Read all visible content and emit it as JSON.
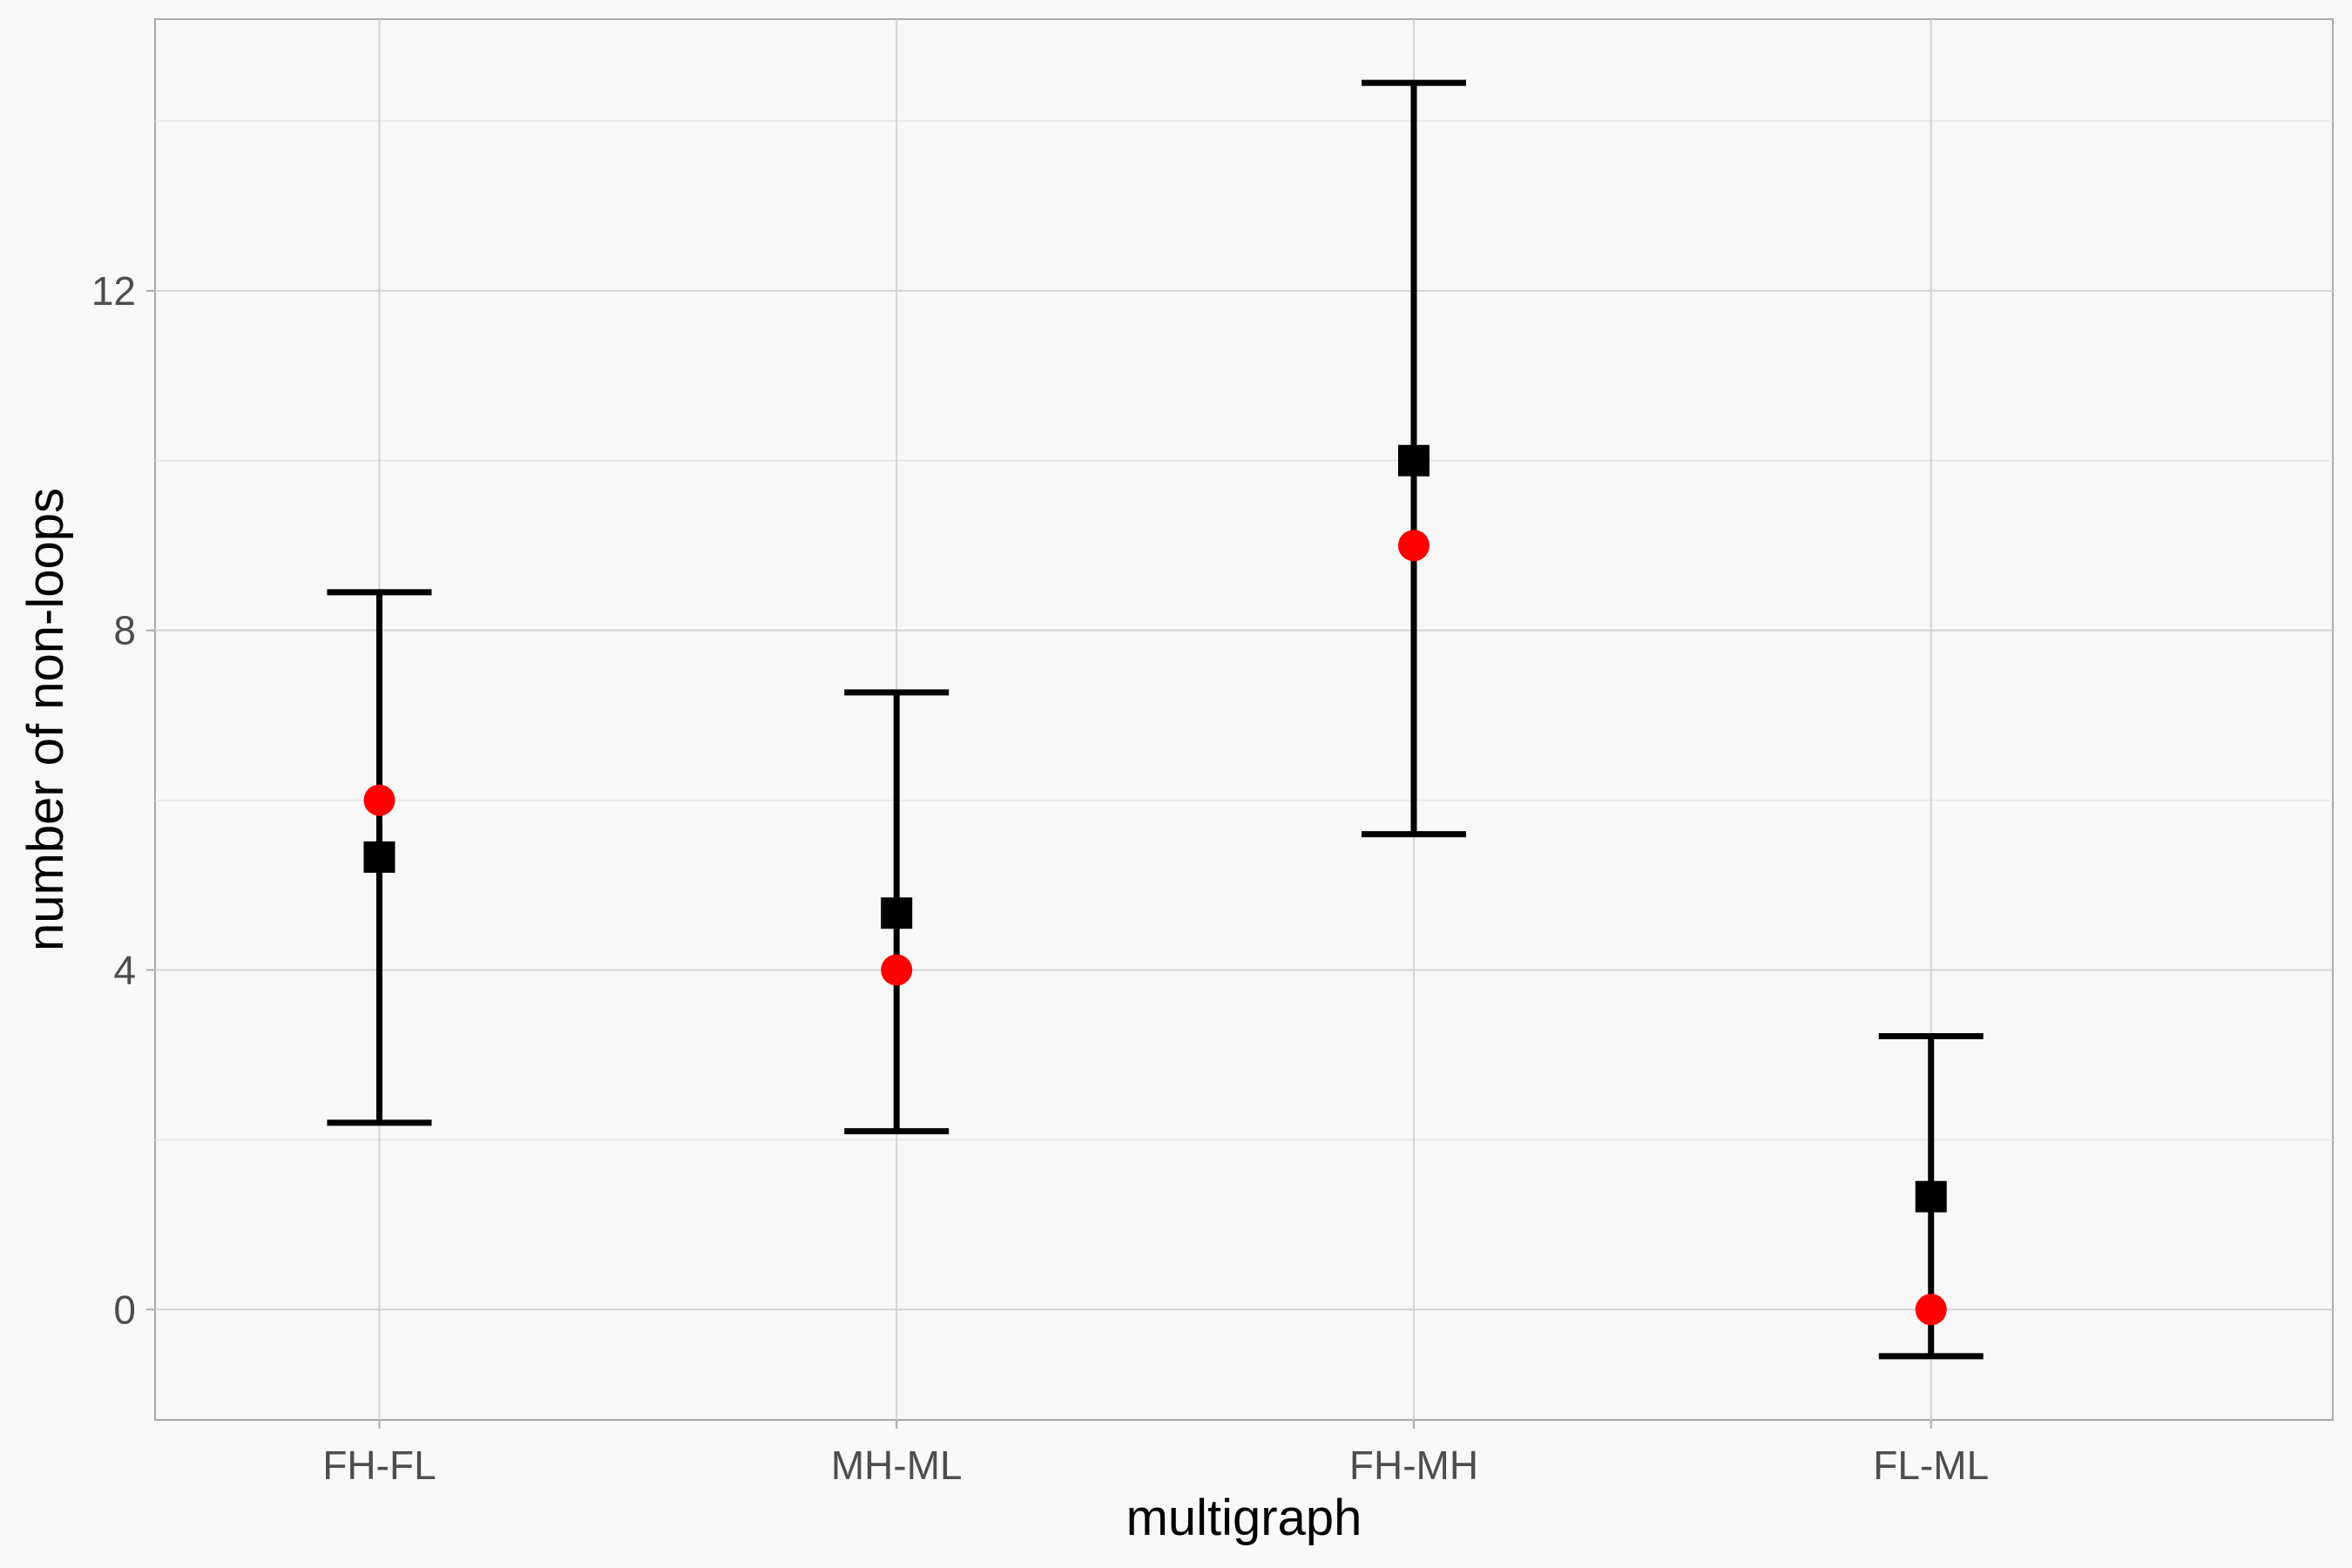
{
  "chart_data": {
    "type": "scatter",
    "xlabel": "multigraph",
    "ylabel": "number of non-loops",
    "categories": [
      "FH-FL",
      "MH-ML",
      "FH-MH",
      "FL-ML"
    ],
    "yticks": [
      0,
      4,
      8,
      12
    ],
    "ylim": [
      -1.3,
      15.2
    ],
    "grid": true,
    "series": [
      {
        "marker": "square",
        "color": "#000000",
        "values": [
          5.33,
          4.67,
          10.0,
          1.33
        ],
        "error_low": [
          2.2,
          2.1,
          5.6,
          -0.55
        ],
        "error_high": [
          8.45,
          7.27,
          14.45,
          3.22
        ]
      },
      {
        "marker": "circle",
        "color": "#ff0000",
        "values": [
          6,
          4,
          9,
          0
        ]
      }
    ]
  }
}
